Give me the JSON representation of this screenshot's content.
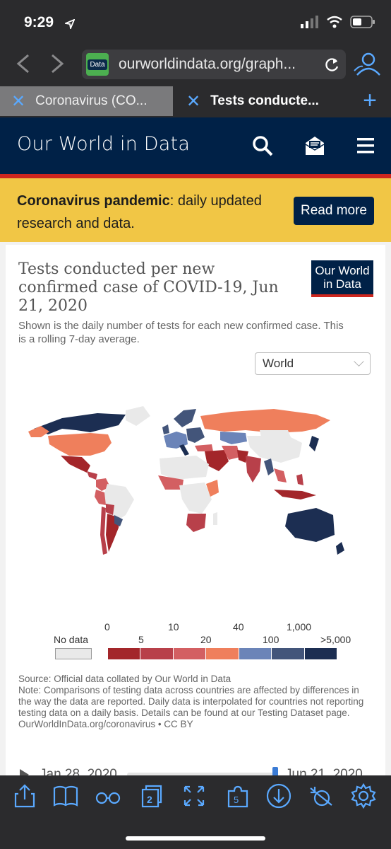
{
  "status": {
    "time": "9:29"
  },
  "browser": {
    "url": "ourworldindata.org/graph...",
    "favicon_text": "Data",
    "tabs": [
      {
        "label": "Coronavirus (CO..."
      },
      {
        "label": "Tests conducte..."
      }
    ]
  },
  "header": {
    "logo": "Our World in Data"
  },
  "banner": {
    "bold": "Coronavirus pandemic",
    "rest": ": daily updated research and data.",
    "button": "Read more"
  },
  "chart": {
    "title": "Tests conducted per new confirmed case of COVID-19, Jun 21, 2020",
    "subtitle": "Shown is the daily number of tests for each new confirmed case. This is a rolling 7-day average.",
    "badge": "Our World in Data",
    "region": "World",
    "legend": {
      "no_data": "No data",
      "ticks_top": [
        "0",
        "10",
        "40",
        "1,000"
      ],
      "ticks_bottom": [
        "5",
        "20",
        "100",
        ">5,000"
      ],
      "colors": [
        "#a3262a",
        "#b8404a",
        "#d35f62",
        "#ef7f5c",
        "#6b84b8",
        "#43557a",
        "#1c2e52"
      ]
    },
    "source": "Source: Official data collated by Our World in Data",
    "note": "Note: Comparisons of testing data across countries are affected by differences in the way the data are reported. Daily data is interpolated for countries not reporting testing data on a daily basis. Details can be found at our Testing Dataset page.",
    "link": "OurWorldInData.org/coronavirus • CC BY",
    "timeline": {
      "start": "Jan 28, 2020",
      "end": "Jun 21, 2020"
    }
  },
  "colors": {
    "accent": "#002147",
    "stripe": "#ce261e",
    "banner_bg": "#f1c645",
    "ios_blue": "#5aa9ff"
  }
}
